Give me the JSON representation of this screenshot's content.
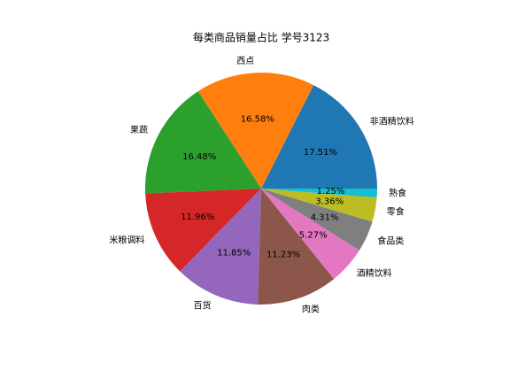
{
  "chart_data": {
    "type": "pie",
    "title": "每类商品销量占比 学号3123",
    "categories": [
      "非酒精饮料",
      "西点",
      "果蔬",
      "米粮调料",
      "百货",
      "肉类",
      "酒精饮料",
      "食品类",
      "零食",
      "熟食"
    ],
    "values": [
      17.51,
      16.58,
      16.48,
      11.96,
      11.85,
      11.23,
      5.27,
      4.31,
      3.36,
      1.25
    ],
    "value_labels": [
      "17.51%",
      "16.58%",
      "16.48%",
      "11.96%",
      "11.85%",
      "11.23%",
      "5.27%",
      "4.31%",
      "3.36%",
      "1.25%"
    ],
    "colors": [
      "#1f77b4",
      "#ff7f0e",
      "#2ca02c",
      "#d62728",
      "#9467bd",
      "#8c564b",
      "#e377c2",
      "#7f7f7f",
      "#bcbd22",
      "#17becf"
    ]
  }
}
